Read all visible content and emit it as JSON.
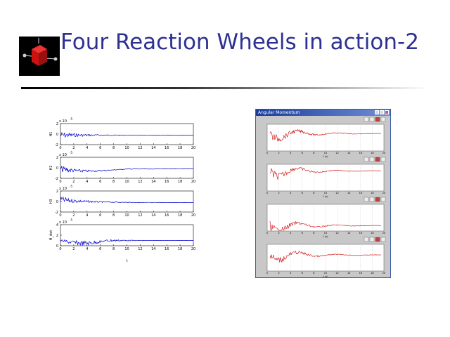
{
  "slide": {
    "title": "Four Reaction Wheels in action-2"
  },
  "logo": {
    "icon": "red-cube-icon",
    "background": "#000000",
    "cube_color": "#cc1111"
  },
  "colors": {
    "title": "#2e3192",
    "left_traces": "#0000cc",
    "right_traces": "#cc0000",
    "window_title": "#1b3c9a"
  },
  "left_figure": {
    "icon": "matlab-plot",
    "xticks": [
      "0",
      "2",
      "4",
      "6",
      "8",
      "10",
      "12",
      "14",
      "16",
      "18",
      "20"
    ],
    "xlabel": "t",
    "panels": [
      {
        "ylabel": "H1",
        "exponent": "x 10",
        "exp_power": "-5",
        "yticks": [
          "2",
          "0",
          "-2"
        ]
      },
      {
        "ylabel": "H2",
        "exponent": "x 10",
        "exp_power": "-5",
        "yticks": [
          "2",
          "0",
          "-2"
        ]
      },
      {
        "ylabel": "H3",
        "exponent": "x 10",
        "exp_power": "-5",
        "yticks": [
          "2",
          "0",
          "-2"
        ]
      },
      {
        "ylabel": "H_dot",
        "exponent": "x 10",
        "exp_power": "-5",
        "yticks": [
          "4",
          "2",
          "0"
        ]
      }
    ]
  },
  "right_window": {
    "title": "Angular Momentum",
    "xticks": [
      "0",
      "2",
      "4",
      "6",
      "8",
      "10",
      "12",
      "14",
      "16",
      "18",
      "20"
    ],
    "panels": [
      {
        "xlabel": "t (s)"
      },
      {
        "xlabel": "t (s)"
      },
      {
        "xlabel": "t (s)"
      },
      {
        "xlabel": "t (s)"
      }
    ]
  }
}
